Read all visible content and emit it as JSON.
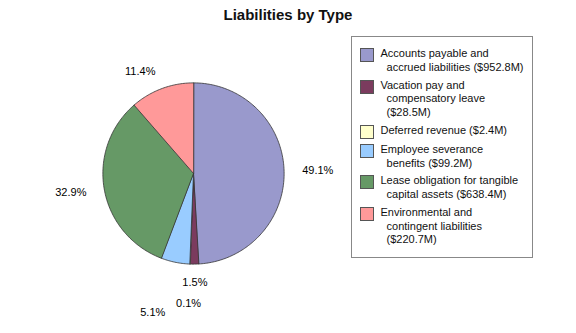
{
  "chart_data": {
    "type": "pie",
    "title": "Liabilities by Type",
    "categories": [
      "Accounts payable and\n  accrued liabilities ($952.8M)",
      "Vacation pay and\n  compensatory leave\n  ($28.5M)",
      "Deferred revenue ($2.4M)",
      "Employee severance\n  benefits ($99.2M)",
      "Lease obligation for tangible\n  capital assets ($638.4M)",
      "Environmental and\n  contingent liabilities\n  ($220.7M)"
    ],
    "values": [
      49.1,
      1.5,
      0.1,
      5.1,
      32.9,
      11.4
    ],
    "value_labels": [
      "49.1%",
      "1.5%",
      "0.1%",
      "5.1%",
      "32.9%",
      "11.4%"
    ],
    "colors": [
      "#9999CC",
      "#7B3B5E",
      "#FFFFCC",
      "#99CCFF",
      "#669966",
      "#FF9999"
    ],
    "data_labels": true,
    "legend": "right"
  }
}
